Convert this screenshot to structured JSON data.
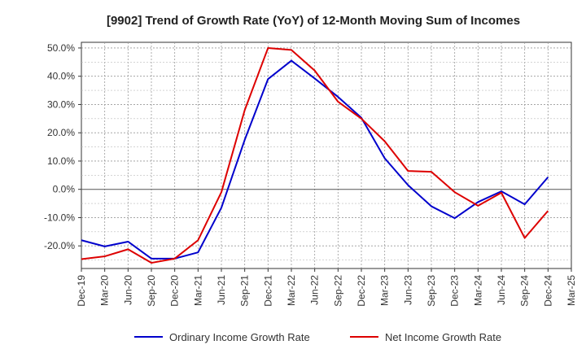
{
  "chart_data": {
    "type": "line",
    "title": "[9902]  Trend of Growth Rate (YoY) of 12-Month Moving Sum of Incomes",
    "xlabel": "",
    "ylabel": "",
    "x": [
      "Dec-19",
      "Mar-20",
      "Jun-20",
      "Sep-20",
      "Dec-20",
      "Mar-21",
      "Jun-21",
      "Sep-21",
      "Dec-21",
      "Mar-22",
      "Jun-22",
      "Sep-22",
      "Dec-22",
      "Mar-23",
      "Jun-23",
      "Sep-23",
      "Dec-23",
      "Mar-24",
      "Jun-24",
      "Sep-24",
      "Dec-24",
      "Mar-25"
    ],
    "y_ticks": [
      50,
      40,
      30,
      20,
      10,
      0,
      -10,
      -20
    ],
    "y_tick_labels": [
      "50.0%",
      "40.0%",
      "30.0%",
      "20.0%",
      "10.0%",
      "0.0%",
      "-10.0%",
      "-20.0%"
    ],
    "ylim": [
      -28,
      52
    ],
    "grid": true,
    "legend_position": "bottom",
    "series": [
      {
        "name": "Ordinary Income Growth Rate",
        "color": "#0000cc",
        "values": [
          -18.0,
          -20.2,
          -18.5,
          -24.5,
          -24.5,
          -22.3,
          -6.5,
          17.5,
          39.0,
          45.5,
          39.2,
          32.7,
          25.3,
          11.0,
          1.5,
          -6.0,
          -10.2,
          -4.5,
          -0.7,
          -5.3,
          4.3,
          null
        ]
      },
      {
        "name": "Net Income Growth Rate",
        "color": "#dd0000",
        "values": [
          -24.7,
          -23.7,
          -21.2,
          -26.0,
          -24.5,
          -18.0,
          -1.0,
          28.0,
          50.0,
          49.3,
          42.0,
          31.0,
          25.0,
          17.0,
          6.5,
          6.2,
          -1.0,
          -5.8,
          -1.2,
          -17.2,
          -7.6,
          null
        ]
      }
    ]
  }
}
